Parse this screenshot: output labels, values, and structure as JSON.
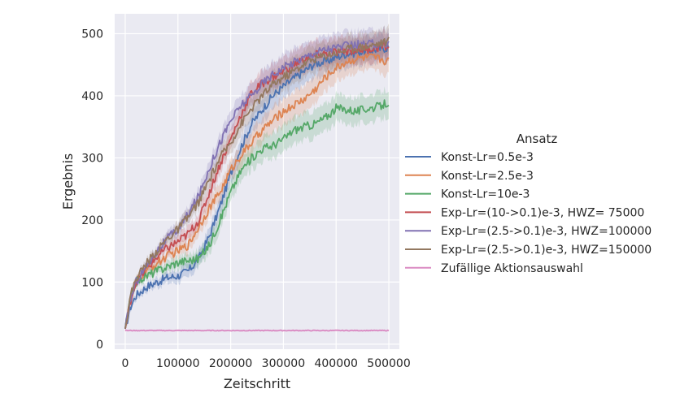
{
  "chart_data": {
    "type": "line",
    "xlabel": "Zeitschritt",
    "ylabel": "Ergebnis",
    "xlim": [
      -20000,
      520000
    ],
    "ylim": [
      -8,
      532
    ],
    "xticks": [
      0,
      100000,
      200000,
      300000,
      400000,
      500000
    ],
    "yticks": [
      0,
      100,
      200,
      300,
      400,
      500
    ],
    "grid": true,
    "legend": {
      "title": "Ansatz",
      "placement": "right"
    },
    "x": [
      0,
      10000,
      20000,
      40000,
      60000,
      80000,
      100000,
      120000,
      140000,
      160000,
      180000,
      200000,
      220000,
      240000,
      260000,
      280000,
      300000,
      320000,
      340000,
      360000,
      380000,
      400000,
      420000,
      440000,
      460000,
      480000,
      500000
    ],
    "series": [
      {
        "name": "Konst-Lr=0.5e-3",
        "color": "#4c72b0",
        "values": [
          25,
          60,
          78,
          92,
          100,
          107,
          110,
          118,
          138,
          175,
          222,
          275,
          318,
          355,
          378,
          400,
          415,
          428,
          440,
          452,
          455,
          462,
          468,
          470,
          473,
          475,
          478
        ]
      },
      {
        "name": "Konst-Lr=2.5e-3",
        "color": "#dd8452",
        "values": [
          25,
          70,
          100,
          118,
          130,
          142,
          150,
          160,
          190,
          220,
          245,
          280,
          305,
          325,
          345,
          360,
          375,
          385,
          395,
          410,
          430,
          445,
          455,
          460,
          462,
          460,
          455
        ]
      },
      {
        "name": "Konst-Lr=10e-3",
        "color": "#55a868",
        "values": [
          25,
          75,
          100,
          110,
          118,
          125,
          132,
          135,
          138,
          160,
          200,
          245,
          280,
          300,
          315,
          320,
          330,
          345,
          350,
          355,
          365,
          380,
          378,
          375,
          380,
          382,
          390
        ]
      },
      {
        "name": "Exp-Lr=(10->0.1)e-3, HWZ= 75000",
        "color": "#c44e52",
        "values": [
          25,
          70,
          100,
          120,
          140,
          155,
          165,
          178,
          200,
          245,
          290,
          330,
          370,
          405,
          420,
          430,
          440,
          450,
          460,
          465,
          468,
          470,
          472,
          474,
          475,
          478,
          480
        ]
      },
      {
        "name": "Exp-Lr=(2.5->0.1)e-3, HWZ=100000",
        "color": "#8172b3",
        "values": [
          25,
          72,
          100,
          125,
          150,
          170,
          185,
          210,
          240,
          285,
          325,
          360,
          385,
          400,
          420,
          435,
          445,
          455,
          462,
          470,
          475,
          478,
          480,
          482,
          483,
          484,
          485
        ]
      },
      {
        "name": "Exp-Lr=(2.5->0.1)e-3, HWZ=150000",
        "color": "#937860",
        "values": [
          25,
          78,
          105,
          130,
          150,
          170,
          185,
          205,
          230,
          265,
          300,
          325,
          355,
          380,
          400,
          418,
          430,
          440,
          452,
          460,
          465,
          470,
          475,
          478,
          480,
          484,
          488
        ]
      },
      {
        "name": "Zufällige Aktionsauswahl",
        "color": "#da8bc3",
        "values": [
          22,
          22,
          22,
          22,
          22,
          22,
          22,
          22,
          22,
          22,
          22,
          22,
          22,
          22,
          22,
          22,
          22,
          22,
          22,
          22,
          22,
          22,
          22,
          22,
          22,
          22,
          22
        ]
      }
    ]
  }
}
